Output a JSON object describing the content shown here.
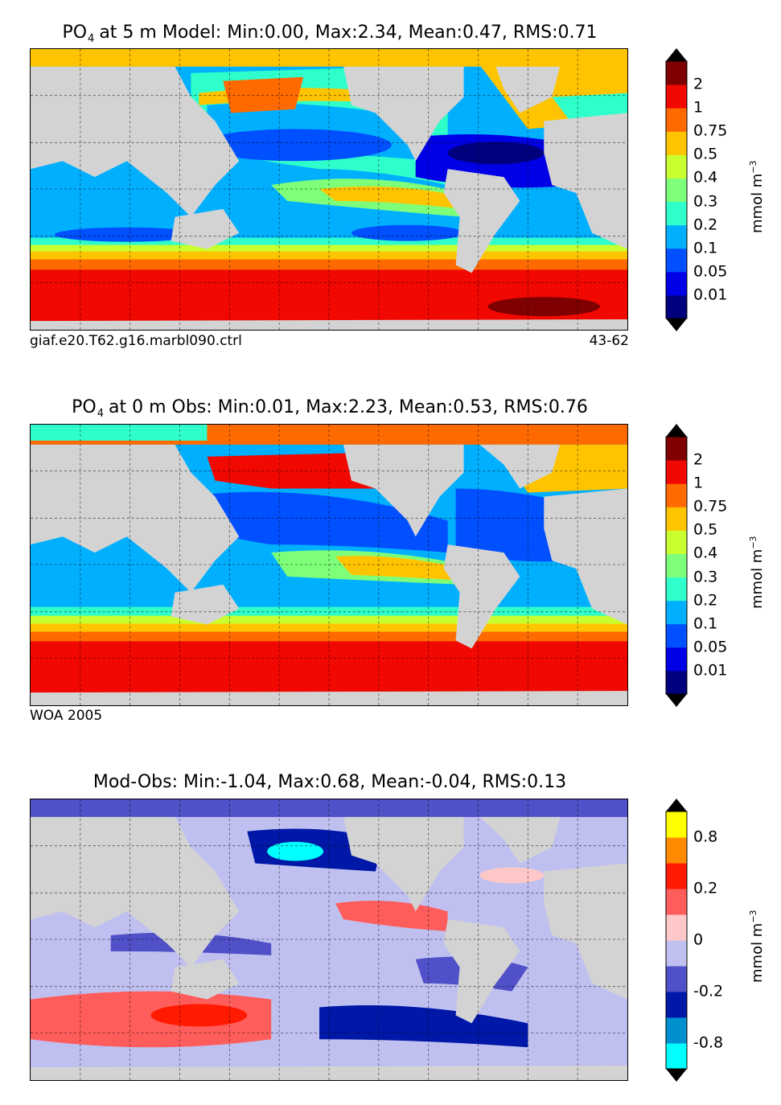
{
  "panels": [
    {
      "title_prefix": "PO",
      "title_sub": "4",
      "title_rest": "at 5 m Model: Min:0.00, Max:2.34, Mean:0.47, RMS:0.71",
      "foot_left": "giaf.e20.T62.g16.marbl090.ctrl",
      "foot_right": "43-62",
      "colorbar": {
        "colors": [
          "#00007f",
          "#0000e6",
          "#0050ff",
          "#00b0ff",
          "#2fffca",
          "#7dff7a",
          "#caff2f",
          "#ffc400",
          "#ff6a00",
          "#f10800",
          "#7f0000"
        ],
        "ticks": [
          "0.01",
          "0.05",
          "0.1",
          "0.2",
          "0.3",
          "0.4",
          "0.5",
          "0.75",
          "1",
          "2"
        ],
        "unit": "mmol m",
        "unit_exp": "−3"
      }
    },
    {
      "title_prefix": "PO",
      "title_sub": "4",
      "title_rest": "at 0 m Obs: Min:0.01, Max:2.23, Mean:0.53, RMS:0.76",
      "foot_left": "WOA 2005",
      "foot_right": "",
      "colorbar": {
        "colors": [
          "#00007f",
          "#0000e6",
          "#0050ff",
          "#00b0ff",
          "#2fffca",
          "#7dff7a",
          "#caff2f",
          "#ffc400",
          "#ff6a00",
          "#f10800",
          "#7f0000"
        ],
        "ticks": [
          "0.01",
          "0.05",
          "0.1",
          "0.2",
          "0.3",
          "0.4",
          "0.5",
          "0.75",
          "1",
          "2"
        ],
        "unit": "mmol m",
        "unit_exp": "−3"
      }
    },
    {
      "title_prefix": "",
      "title_sub": "",
      "title_rest": "Mod-Obs: Min:-1.04, Max:0.68, Mean:-0.04, RMS:0.13",
      "foot_left": "",
      "foot_right": "",
      "colorbar": {
        "colors": [
          "#00ffff",
          "#0090d0",
          "#0018a8",
          "#5050c8",
          "#c0c0f0",
          "#ffc8c8",
          "#ff5c5c",
          "#ff1a00",
          "#ff8a00",
          "#ffff00"
        ],
        "tick_slots": [
          1,
          3,
          5,
          7,
          9
        ],
        "ticks": [
          "-0.8",
          "-0.2",
          "0",
          "0.2",
          "0.8"
        ],
        "unit": "mmol m",
        "unit_exp": "−3"
      }
    }
  ]
}
